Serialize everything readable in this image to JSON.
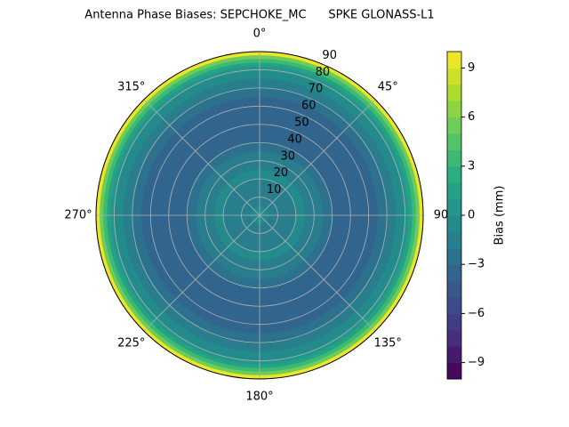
{
  "chart_data": {
    "type": "polar-contour",
    "title": "Antenna Phase Biases: SEPCHOKE_MC      SPKE GLONASS-L1",
    "colorbar_label": "Bias (mm)",
    "colormap": "viridis",
    "zenith": [
      0,
      5,
      10,
      15,
      20,
      25,
      30,
      35,
      40,
      45,
      50,
      55,
      60,
      65,
      70,
      75,
      80,
      82,
      84,
      86,
      88,
      90
    ],
    "values": [
      -0.5,
      -0.8,
      -1.2,
      -1.5,
      -1.3,
      -1.0,
      -1.2,
      -2.0,
      -2.8,
      -3.3,
      -3.6,
      -3.8,
      -3.8,
      -3.5,
      -3.0,
      -2.0,
      -0.5,
      0.5,
      1.8,
      3.5,
      5.8,
      9
    ],
    "rlim": [
      0,
      90
    ],
    "rticks": [
      10,
      20,
      30,
      40,
      50,
      60,
      70,
      80,
      90
    ],
    "thetaticks": [
      {
        "value": 0,
        "label": "0°"
      },
      {
        "value": 45,
        "label": "45°"
      },
      90,
      {
        "value": 135,
        "label": "135°"
      },
      {
        "value": 180,
        "label": "180°"
      },
      {
        "value": 225,
        "label": "225°"
      },
      {
        "value": 270,
        "label": "270°"
      },
      {
        "value": 315,
        "label": "315°"
      }
    ],
    "clim": [
      -10,
      10
    ],
    "level_step": 1,
    "cticks": [
      {
        "value": -9,
        "label": "−9"
      },
      {
        "value": -6,
        "label": "−6"
      },
      {
        "value": -3,
        "label": "−3"
      },
      0,
      3,
      6,
      9
    ],
    "grid": true
  }
}
